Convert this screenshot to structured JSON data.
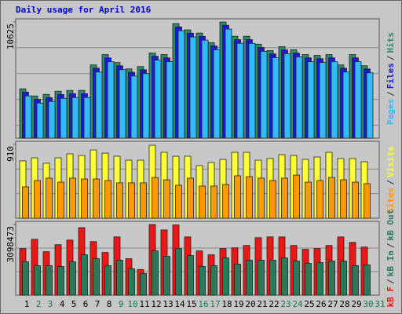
{
  "title": "Daily usage for April 2016",
  "legend_separator": "/",
  "days": {
    "categories": [
      "1",
      "2",
      "3",
      "4",
      "5",
      "6",
      "7",
      "8",
      "9",
      "10",
      "11",
      "12",
      "13",
      "14",
      "15",
      "16",
      "17",
      "18",
      "19",
      "20",
      "21",
      "22",
      "23",
      "24",
      "25",
      "26",
      "27",
      "28",
      "29",
      "30",
      "31"
    ],
    "label_colors": [
      "#000000",
      "#117a55",
      "#117a55",
      "#000000",
      "#000000",
      "#000000",
      "#000000",
      "#000000",
      "#117a55",
      "#117a55",
      "#000000",
      "#000000",
      "#000000",
      "#000000",
      "#000000",
      "#117a55",
      "#117a55",
      "#000000",
      "#000000",
      "#000000",
      "#000000",
      "#000000",
      "#117a55",
      "#117a55",
      "#000000",
      "#000000",
      "#000000",
      "#000000",
      "#000000",
      "#117a55",
      "#117a55"
    ]
  },
  "chart_data": [
    {
      "type": "bar",
      "ylim": [
        0,
        10625
      ],
      "yticks": [
        10625
      ],
      "bar_order": "reverse",
      "series": [
        {
          "name": "Pages",
          "color": "#33bbff",
          "values": [
            3864,
            3208,
            3354,
            3645,
            3718,
            3718,
            6048,
            6994,
            6266,
            5684,
            5902,
            7140,
            6994,
            9830,
            9251,
            8960,
            8086,
            9975,
            8668,
            8668,
            7940,
            7358,
            7722,
            7431,
            6994,
            6921,
            6994,
            6048,
            6994,
            5975,
            null
          ]
        },
        {
          "name": "Files",
          "color": "#1a1ad8",
          "values": [
            4214,
            3558,
            3704,
            3995,
            4068,
            4068,
            6398,
            7344,
            6616,
            6034,
            6252,
            7490,
            7344,
            10180,
            9601,
            9310,
            8436,
            10325,
            9018,
            9018,
            8290,
            7708,
            8072,
            7781,
            7344,
            7271,
            7344,
            6398,
            7344,
            6325,
            null
          ]
        },
        {
          "name": "Hits",
          "color": "#2f8a68",
          "values": [
            4514,
            3858,
            4004,
            4295,
            4368,
            4368,
            6698,
            7644,
            6916,
            6334,
            6552,
            7790,
            7644,
            10480,
            9901,
            9610,
            8736,
            10625,
            9318,
            9318,
            8590,
            8008,
            8372,
            8081,
            7644,
            7571,
            7644,
            6698,
            7644,
            6625,
            null
          ]
        }
      ]
    },
    {
      "type": "bar",
      "ylim": [
        0,
        910
      ],
      "yticks": [
        910
      ],
      "bar_order": "reverse",
      "series": [
        {
          "name": "Sites",
          "color": "#ff9900",
          "values": [
            387,
            465,
            494,
            445,
            494,
            484,
            484,
            465,
            436,
            436,
            436,
            503,
            474,
            407,
            494,
            397,
            397,
            416,
            523,
            513,
            494,
            465,
            494,
            532,
            445,
            465,
            503,
            474,
            445,
            426,
            null
          ]
        },
        {
          "name": "Visits",
          "color": "#ffff33",
          "values": [
            707,
            745,
            678,
            745,
            794,
            774,
            842,
            803,
            765,
            716,
            716,
            900,
            813,
            765,
            765,
            649,
            687,
            726,
            813,
            813,
            716,
            736,
            784,
            774,
            726,
            755,
            813,
            736,
            736,
            697,
            null
          ]
        }
      ]
    },
    {
      "type": "bar",
      "ylim": [
        0,
        3098473
      ],
      "yticks": [
        3098473
      ],
      "bar_order": "forward",
      "series": [
        {
          "name": "kB F",
          "color": "#ee1515",
          "values": [
            2043000,
            2452000,
            1907000,
            2213000,
            2417000,
            2962000,
            2349000,
            1873000,
            2554000,
            1600000,
            1124000,
            3098473,
            2860000,
            3080000,
            2554000,
            1941000,
            1771000,
            2043000,
            2077000,
            2179000,
            2520000,
            2554000,
            2554000,
            2179000,
            2009000,
            2043000,
            2179000,
            2554000,
            2315000,
            2111000,
            null
          ]
        },
        {
          "name": "kB In",
          "color": "#2a7a5a",
          "values": [
            1464000,
            1294000,
            1294000,
            1260000,
            1464000,
            1771000,
            1600000,
            1294000,
            1532000,
            1158000,
            953000,
            1941000,
            1702000,
            2043000,
            1736000,
            1260000,
            1294000,
            1634000,
            1362000,
            1532000,
            1532000,
            1532000,
            1634000,
            1498000,
            1396000,
            1430000,
            1498000,
            1498000,
            1294000,
            1328000,
            null
          ]
        }
      ],
      "legend_extra": [
        {
          "name": "kB Out",
          "color": "#2a7a5a"
        }
      ]
    }
  ]
}
